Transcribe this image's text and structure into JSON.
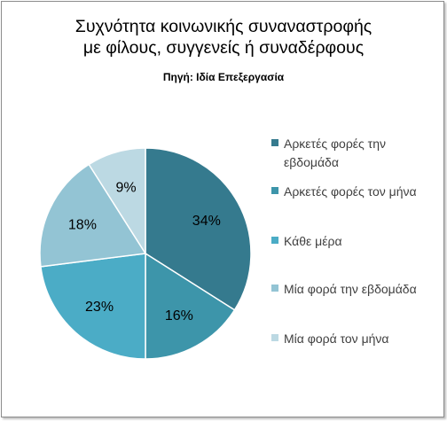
{
  "chart_data": {
    "type": "pie",
    "title_line1": "Συχνότητα κοινωνικής συναναστροφής",
    "title_line2": "με φίλους, συγγενείς ή συναδέρφους",
    "subtitle": "Πηγή: Ιδία Επεξεργασία",
    "legend_position": "right",
    "slices": [
      {
        "label": "Αρκετές φορές την εβδομάδα",
        "value": 34,
        "display": "34%",
        "color": "#357a8e"
      },
      {
        "label": "Αρκετές φορές τον μήνα",
        "value": 16,
        "display": "16%",
        "color": "#3d95aa"
      },
      {
        "label": "Κάθε μέρα",
        "value": 23,
        "display": "23%",
        "color": "#4bacc6"
      },
      {
        "label": "Μία  φορά την εβδομάδα",
        "value": 18,
        "display": "18%",
        "color": "#93c4d4"
      },
      {
        "label": "Μία  φορά τον μήνα",
        "value": 9,
        "display": "9%",
        "color": "#bcd9e3"
      }
    ]
  }
}
